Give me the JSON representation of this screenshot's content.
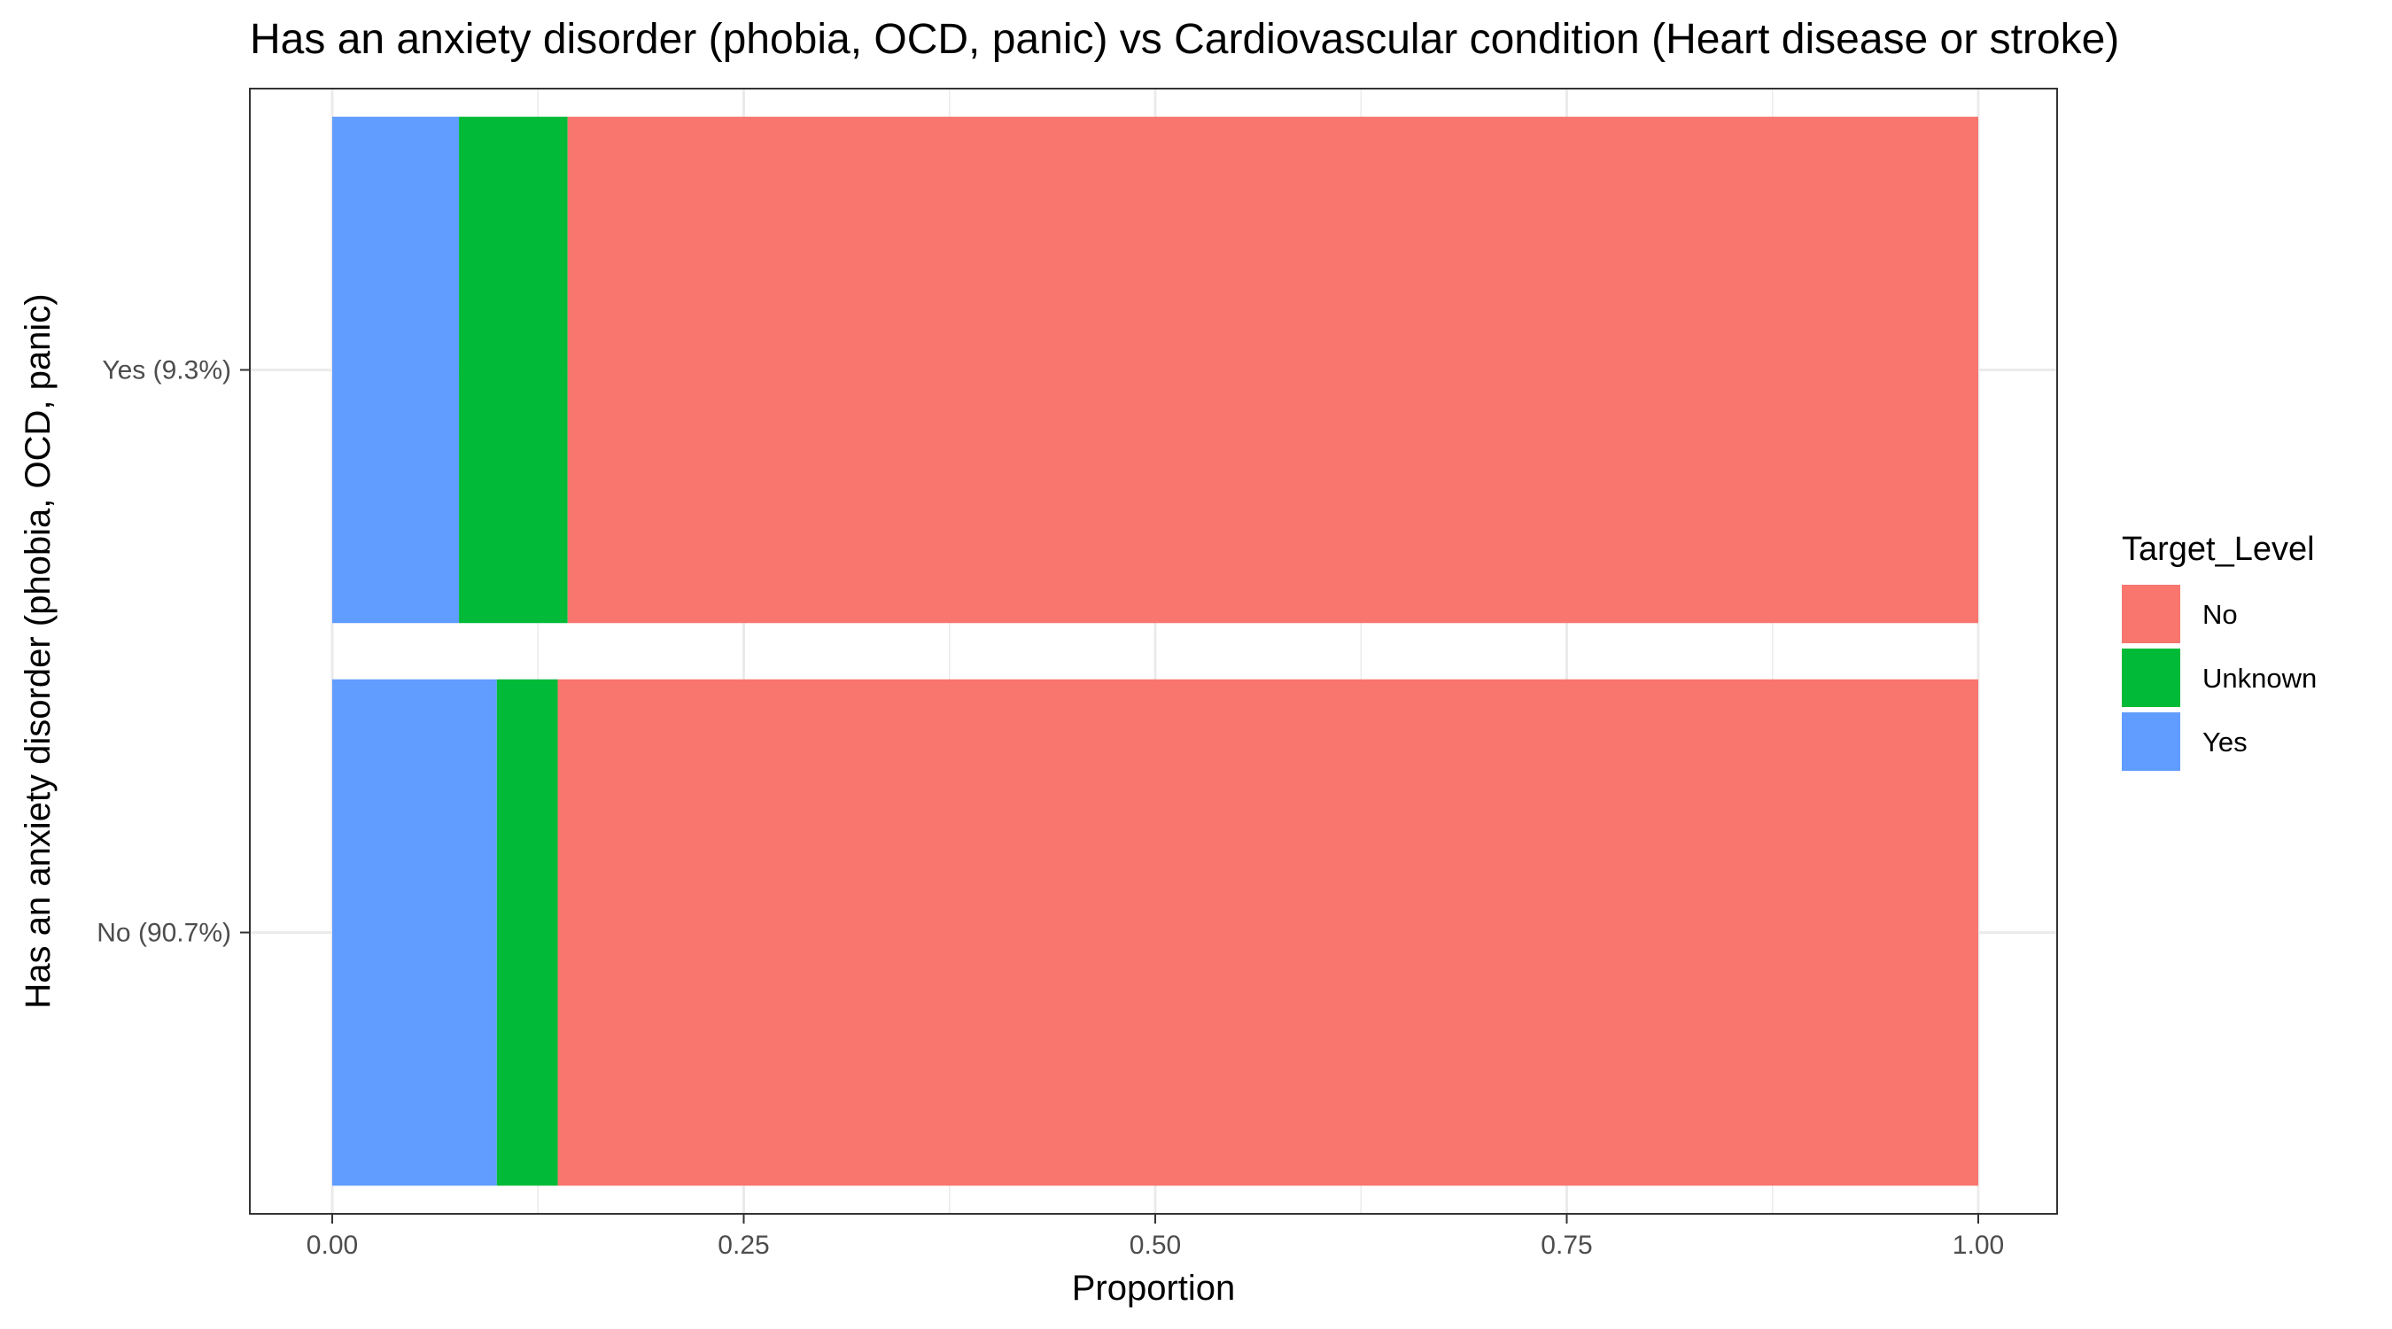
{
  "chart_data": {
    "type": "bar",
    "orientation": "horizontal",
    "stacked": true,
    "title": "Has an anxiety disorder (phobia, OCD, panic) vs Cardiovascular condition (Heart disease or stroke)",
    "xlabel": "Proportion",
    "ylabel": "Has an anxiety disorder (phobia, OCD, panic)",
    "categories": [
      "Yes (9.3%)",
      "No (90.7%)"
    ],
    "xlim": [
      0,
      1
    ],
    "xticks": [
      "0.00",
      "0.25",
      "0.50",
      "0.75",
      "1.00"
    ],
    "xtick_values": [
      0,
      0.25,
      0.5,
      0.75,
      1.0
    ],
    "grid": true,
    "legend": {
      "title": "Target_Level",
      "position": "right"
    },
    "series": [
      {
        "name": "Yes",
        "color": "#619CFF",
        "values": [
          0.077,
          0.1
        ]
      },
      {
        "name": "Unknown",
        "color": "#00BA38",
        "values": [
          0.066,
          0.037
        ]
      },
      {
        "name": "No",
        "color": "#F8766D",
        "values": [
          0.857,
          0.863
        ]
      }
    ],
    "legend_order": [
      "No",
      "Unknown",
      "Yes"
    ]
  }
}
